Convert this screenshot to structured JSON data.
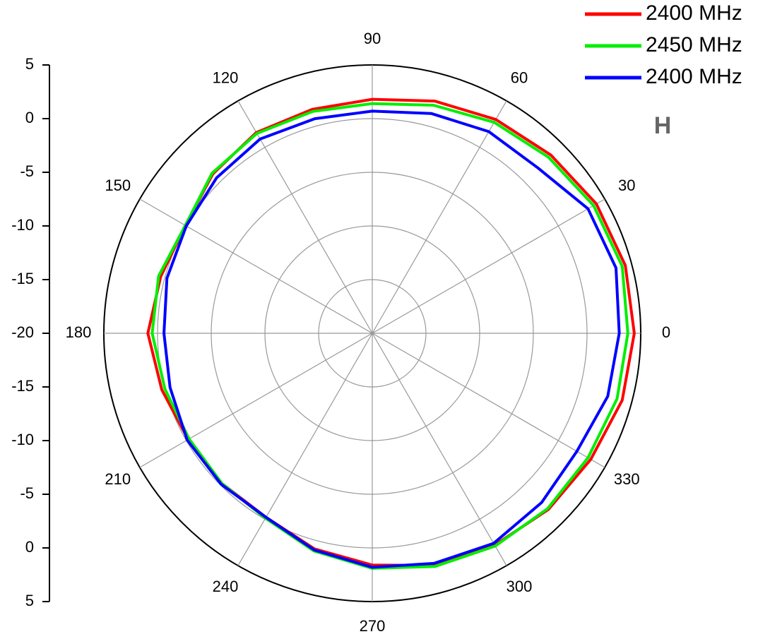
{
  "chart_data": {
    "type": "polar",
    "theta": [
      0,
      15,
      30,
      45,
      60,
      75,
      90,
      105,
      120,
      135,
      150,
      165,
      180,
      195,
      210,
      225,
      240,
      255,
      270,
      285,
      300,
      315,
      330,
      345
    ],
    "series": [
      {
        "name": "2400 MHz",
        "color": "#ff0000",
        "values": [
          4.4,
          4.4,
          4.1,
          3.5,
          3.0,
          2.4,
          1.8,
          1.6,
          1.6,
          1.0,
          0.1,
          0.4,
          0.9,
          0.3,
          -0.2,
          -0.2,
          -0.2,
          0.8,
          1.6,
          2.4,
          2.8,
          3.2,
          3.5,
          4.1
        ]
      },
      {
        "name": "2450 MHz",
        "color": "#00ee00",
        "values": [
          3.8,
          4.1,
          3.8,
          3.2,
          2.7,
          2.0,
          1.4,
          1.4,
          1.5,
          1.1,
          0.1,
          0.6,
          0.5,
          0.0,
          -0.3,
          -0.2,
          -0.1,
          1.0,
          1.9,
          2.5,
          2.9,
          3.1,
          3.2,
          3.6
        ]
      },
      {
        "name": "2400 MHz",
        "color": "#0000ff",
        "values": [
          3.0,
          3.5,
          3.2,
          1.8,
          1.7,
          1.2,
          0.7,
          0.7,
          0.9,
          0.5,
          0.0,
          -0.2,
          -0.6,
          -0.5,
          -0.1,
          -0.1,
          -0.2,
          0.9,
          1.8,
          2.2,
          2.6,
          2.3,
          2.0,
          2.7
        ]
      }
    ],
    "rlim": [
      -20,
      5
    ],
    "rticks": [
      -20,
      -15,
      -10,
      -5,
      0,
      5
    ],
    "thetaticks": [
      0,
      30,
      60,
      90,
      120,
      150,
      180,
      210,
      240,
      270,
      300,
      330
    ],
    "annotation": "H",
    "grid": true
  }
}
